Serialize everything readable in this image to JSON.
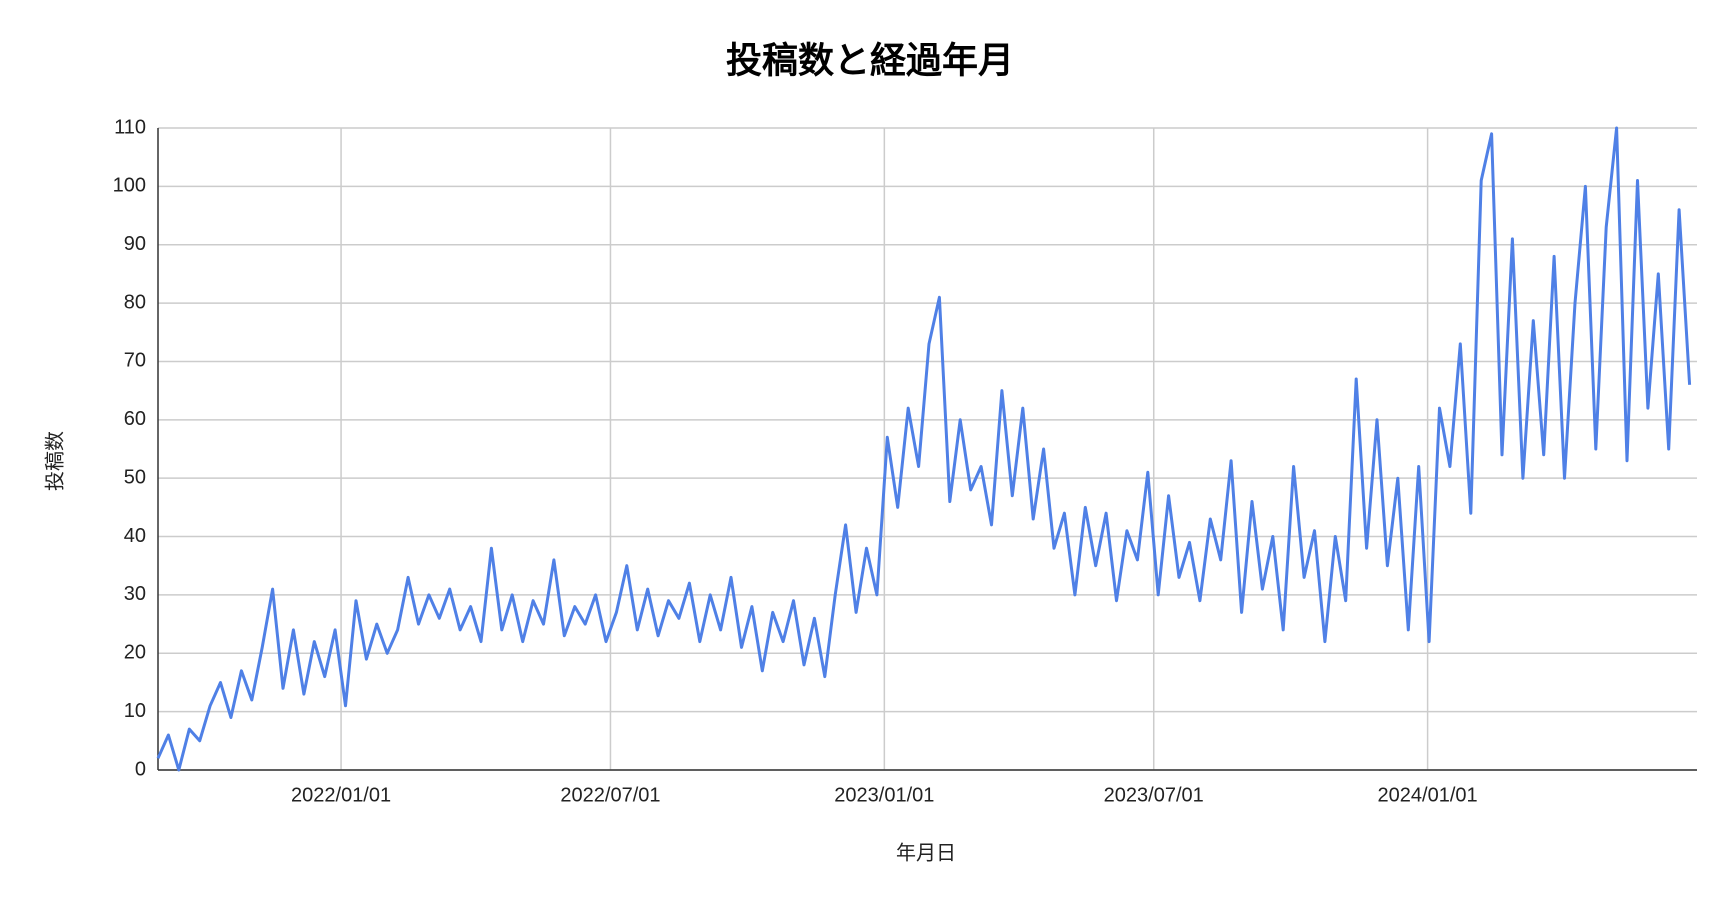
{
  "chart_data": {
    "type": "line",
    "title": "投稿数と経過年月",
    "x_label": "年月日",
    "y_label": "投稿数",
    "xlim": [
      "2021/08/31",
      "2024/06/30"
    ],
    "xticks": [
      "2022/01/01",
      "2022/07/01",
      "2023/01/01",
      "2023/07/01",
      "2024/01/01"
    ],
    "ylim": [
      0,
      110
    ],
    "yticks": [
      0,
      10,
      20,
      30,
      40,
      50,
      60,
      70,
      80,
      90,
      100,
      110
    ],
    "grid": true,
    "x": [
      "2021/08/31",
      "2021/09/07",
      "2021/09/14",
      "2021/09/21",
      "2021/09/28",
      "2021/10/05",
      "2021/10/12",
      "2021/10/19",
      "2021/10/26",
      "2021/11/02",
      "2021/11/09",
      "2021/11/16",
      "2021/11/23",
      "2021/11/30",
      "2021/12/07",
      "2021/12/14",
      "2021/12/21",
      "2021/12/28",
      "2022/01/04",
      "2022/01/11",
      "2022/01/18",
      "2022/01/25",
      "2022/02/01",
      "2022/02/08",
      "2022/02/15",
      "2022/02/22",
      "2022/03/01",
      "2022/03/08",
      "2022/03/15",
      "2022/03/22",
      "2022/03/29",
      "2022/04/05",
      "2022/04/12",
      "2022/04/19",
      "2022/04/26",
      "2022/05/03",
      "2022/05/10",
      "2022/05/17",
      "2022/05/24",
      "2022/05/31",
      "2022/06/07",
      "2022/06/14",
      "2022/06/21",
      "2022/06/28",
      "2022/07/05",
      "2022/07/12",
      "2022/07/19",
      "2022/07/26",
      "2022/08/02",
      "2022/08/09",
      "2022/08/16",
      "2022/08/23",
      "2022/08/30",
      "2022/09/06",
      "2022/09/13",
      "2022/09/20",
      "2022/09/27",
      "2022/10/04",
      "2022/10/11",
      "2022/10/18",
      "2022/10/25",
      "2022/11/01",
      "2022/11/08",
      "2022/11/15",
      "2022/11/22",
      "2022/11/29",
      "2022/12/06",
      "2022/12/13",
      "2022/12/20",
      "2022/12/27",
      "2023/01/03",
      "2023/01/10",
      "2023/01/17",
      "2023/01/24",
      "2023/01/31",
      "2023/02/07",
      "2023/02/14",
      "2023/02/21",
      "2023/02/28",
      "2023/03/07",
      "2023/03/14",
      "2023/03/21",
      "2023/03/28",
      "2023/04/04",
      "2023/04/11",
      "2023/04/18",
      "2023/04/25",
      "2023/05/02",
      "2023/05/09",
      "2023/05/16",
      "2023/05/23",
      "2023/05/30",
      "2023/06/06",
      "2023/06/13",
      "2023/06/20",
      "2023/06/27",
      "2023/07/04",
      "2023/07/11",
      "2023/07/18",
      "2023/07/25",
      "2023/08/01",
      "2023/08/08",
      "2023/08/15",
      "2023/08/22",
      "2023/08/29",
      "2023/09/05",
      "2023/09/12",
      "2023/09/19",
      "2023/09/26",
      "2023/10/03",
      "2023/10/10",
      "2023/10/17",
      "2023/10/24",
      "2023/10/31",
      "2023/11/07",
      "2023/11/14",
      "2023/11/21",
      "2023/11/28",
      "2023/12/05",
      "2023/12/12",
      "2023/12/19",
      "2023/12/26",
      "2024/01/02",
      "2024/01/09",
      "2024/01/16",
      "2024/01/23",
      "2024/01/30",
      "2024/02/06",
      "2024/02/13",
      "2024/02/20",
      "2024/02/27",
      "2024/03/05",
      "2024/03/12",
      "2024/03/19",
      "2024/03/26",
      "2024/04/02",
      "2024/04/09",
      "2024/04/16",
      "2024/04/23",
      "2024/04/30",
      "2024/05/07",
      "2024/05/14",
      "2024/05/21",
      "2024/05/28",
      "2024/06/04",
      "2024/06/11",
      "2024/06/18",
      "2024/06/25"
    ],
    "series": [
      {
        "name": "投稿数",
        "color": "#4f80e6",
        "values": [
          2,
          6,
          0,
          7,
          5,
          11,
          15,
          9,
          17,
          12,
          21,
          31,
          14,
          24,
          13,
          22,
          16,
          24,
          11,
          29,
          19,
          25,
          20,
          24,
          33,
          25,
          30,
          26,
          31,
          24,
          28,
          22,
          38,
          24,
          30,
          22,
          29,
          25,
          36,
          23,
          28,
          25,
          30,
          22,
          27,
          35,
          24,
          31,
          23,
          29,
          26,
          32,
          22,
          30,
          24,
          33,
          21,
          28,
          17,
          27,
          22,
          29,
          18,
          26,
          16,
          30,
          42,
          27,
          38,
          30,
          57,
          45,
          62,
          52,
          73,
          81,
          46,
          60,
          48,
          52,
          42,
          65,
          47,
          62,
          43,
          55,
          38,
          44,
          30,
          45,
          35,
          44,
          29,
          41,
          36,
          51,
          30,
          47,
          33,
          39,
          29,
          43,
          36,
          53,
          27,
          46,
          31,
          40,
          24,
          52,
          33,
          41,
          22,
          40,
          29,
          67,
          38,
          60,
          35,
          50,
          24,
          52,
          22,
          62,
          52,
          73,
          44,
          101,
          109,
          54,
          91,
          50,
          77,
          54,
          88,
          50,
          80,
          100,
          55,
          93,
          110,
          53,
          101,
          62,
          85,
          55,
          96,
          66
        ]
      }
    ]
  }
}
